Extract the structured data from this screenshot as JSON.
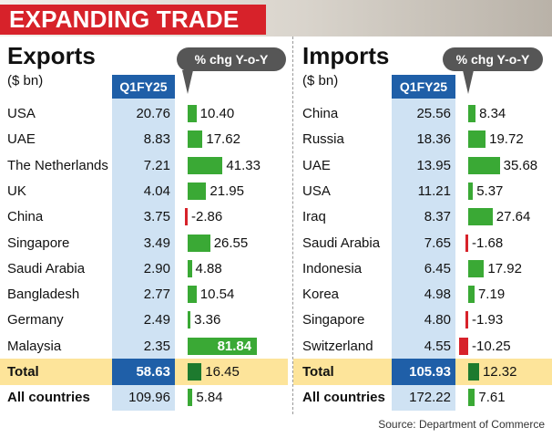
{
  "banner": {
    "title": "EXPANDING TRADE"
  },
  "source": "Source: Department of Commerce",
  "colors": {
    "banner": "#d7222a",
    "header_blue": "#1f5fa8",
    "column_bg": "#cfe2f3",
    "total_bg": "#fde49a",
    "bar_pos": "#3aa935",
    "bar_pos_total": "#1d7a2e",
    "bar_neg": "#d7222a"
  },
  "chart_data": [
    {
      "type": "table",
      "title": "Exports",
      "unit": "($ bn)",
      "value_header": "Q1FY25",
      "pct_header": "% chg Y-o-Y",
      "rows": [
        {
          "name": "USA",
          "value": "20.76",
          "pct": "10.40",
          "pct_num": 10.4
        },
        {
          "name": "UAE",
          "value": "8.83",
          "pct": "17.62",
          "pct_num": 17.62
        },
        {
          "name": "The Netherlands",
          "value": "7.21",
          "pct": "41.33",
          "pct_num": 41.33
        },
        {
          "name": "UK",
          "value": "4.04",
          "pct": "21.95",
          "pct_num": 21.95
        },
        {
          "name": "China",
          "value": "3.75",
          "pct": "-2.86",
          "pct_num": -2.86
        },
        {
          "name": "Singapore",
          "value": "3.49",
          "pct": "26.55",
          "pct_num": 26.55
        },
        {
          "name": "Saudi Arabia",
          "value": "2.90",
          "pct": "4.88",
          "pct_num": 4.88
        },
        {
          "name": "Bangladesh",
          "value": "2.77",
          "pct": "10.54",
          "pct_num": 10.54
        },
        {
          "name": "Germany",
          "value": "2.49",
          "pct": "3.36",
          "pct_num": 3.36
        },
        {
          "name": "Malaysia",
          "value": "2.35",
          "pct": "81.84",
          "pct_num": 81.84
        }
      ],
      "total": {
        "name": "Total",
        "value": "58.63",
        "pct": "16.45",
        "pct_num": 16.45
      },
      "all": {
        "name": "All countries",
        "value": "109.96",
        "pct": "5.84",
        "pct_num": 5.84
      }
    },
    {
      "type": "table",
      "title": "Imports",
      "unit": "($ bn)",
      "value_header": "Q1FY25",
      "pct_header": "% chg Y-o-Y",
      "rows": [
        {
          "name": "China",
          "value": "25.56",
          "pct": "8.34",
          "pct_num": 8.34
        },
        {
          "name": "Russia",
          "value": "18.36",
          "pct": "19.72",
          "pct_num": 19.72
        },
        {
          "name": "UAE",
          "value": "13.95",
          "pct": "35.68",
          "pct_num": 35.68
        },
        {
          "name": "USA",
          "value": "11.21",
          "pct": "5.37",
          "pct_num": 5.37
        },
        {
          "name": "Iraq",
          "value": "8.37",
          "pct": "27.64",
          "pct_num": 27.64
        },
        {
          "name": "Saudi Arabia",
          "value": "7.65",
          "pct": "-1.68",
          "pct_num": -1.68
        },
        {
          "name": "Indonesia",
          "value": "6.45",
          "pct": "17.92",
          "pct_num": 17.92
        },
        {
          "name": "Korea",
          "value": "4.98",
          "pct": "7.19",
          "pct_num": 7.19
        },
        {
          "name": "Singapore",
          "value": "4.80",
          "pct": "-1.93",
          "pct_num": -1.93
        },
        {
          "name": "Switzerland",
          "value": "4.55",
          "pct": "-10.25",
          "pct_num": -10.25
        }
      ],
      "total": {
        "name": "Total",
        "value": "105.93",
        "pct": "12.32",
        "pct_num": 12.32
      },
      "all": {
        "name": "All countries",
        "value": "172.22",
        "pct": "7.61",
        "pct_num": 7.61
      }
    }
  ]
}
